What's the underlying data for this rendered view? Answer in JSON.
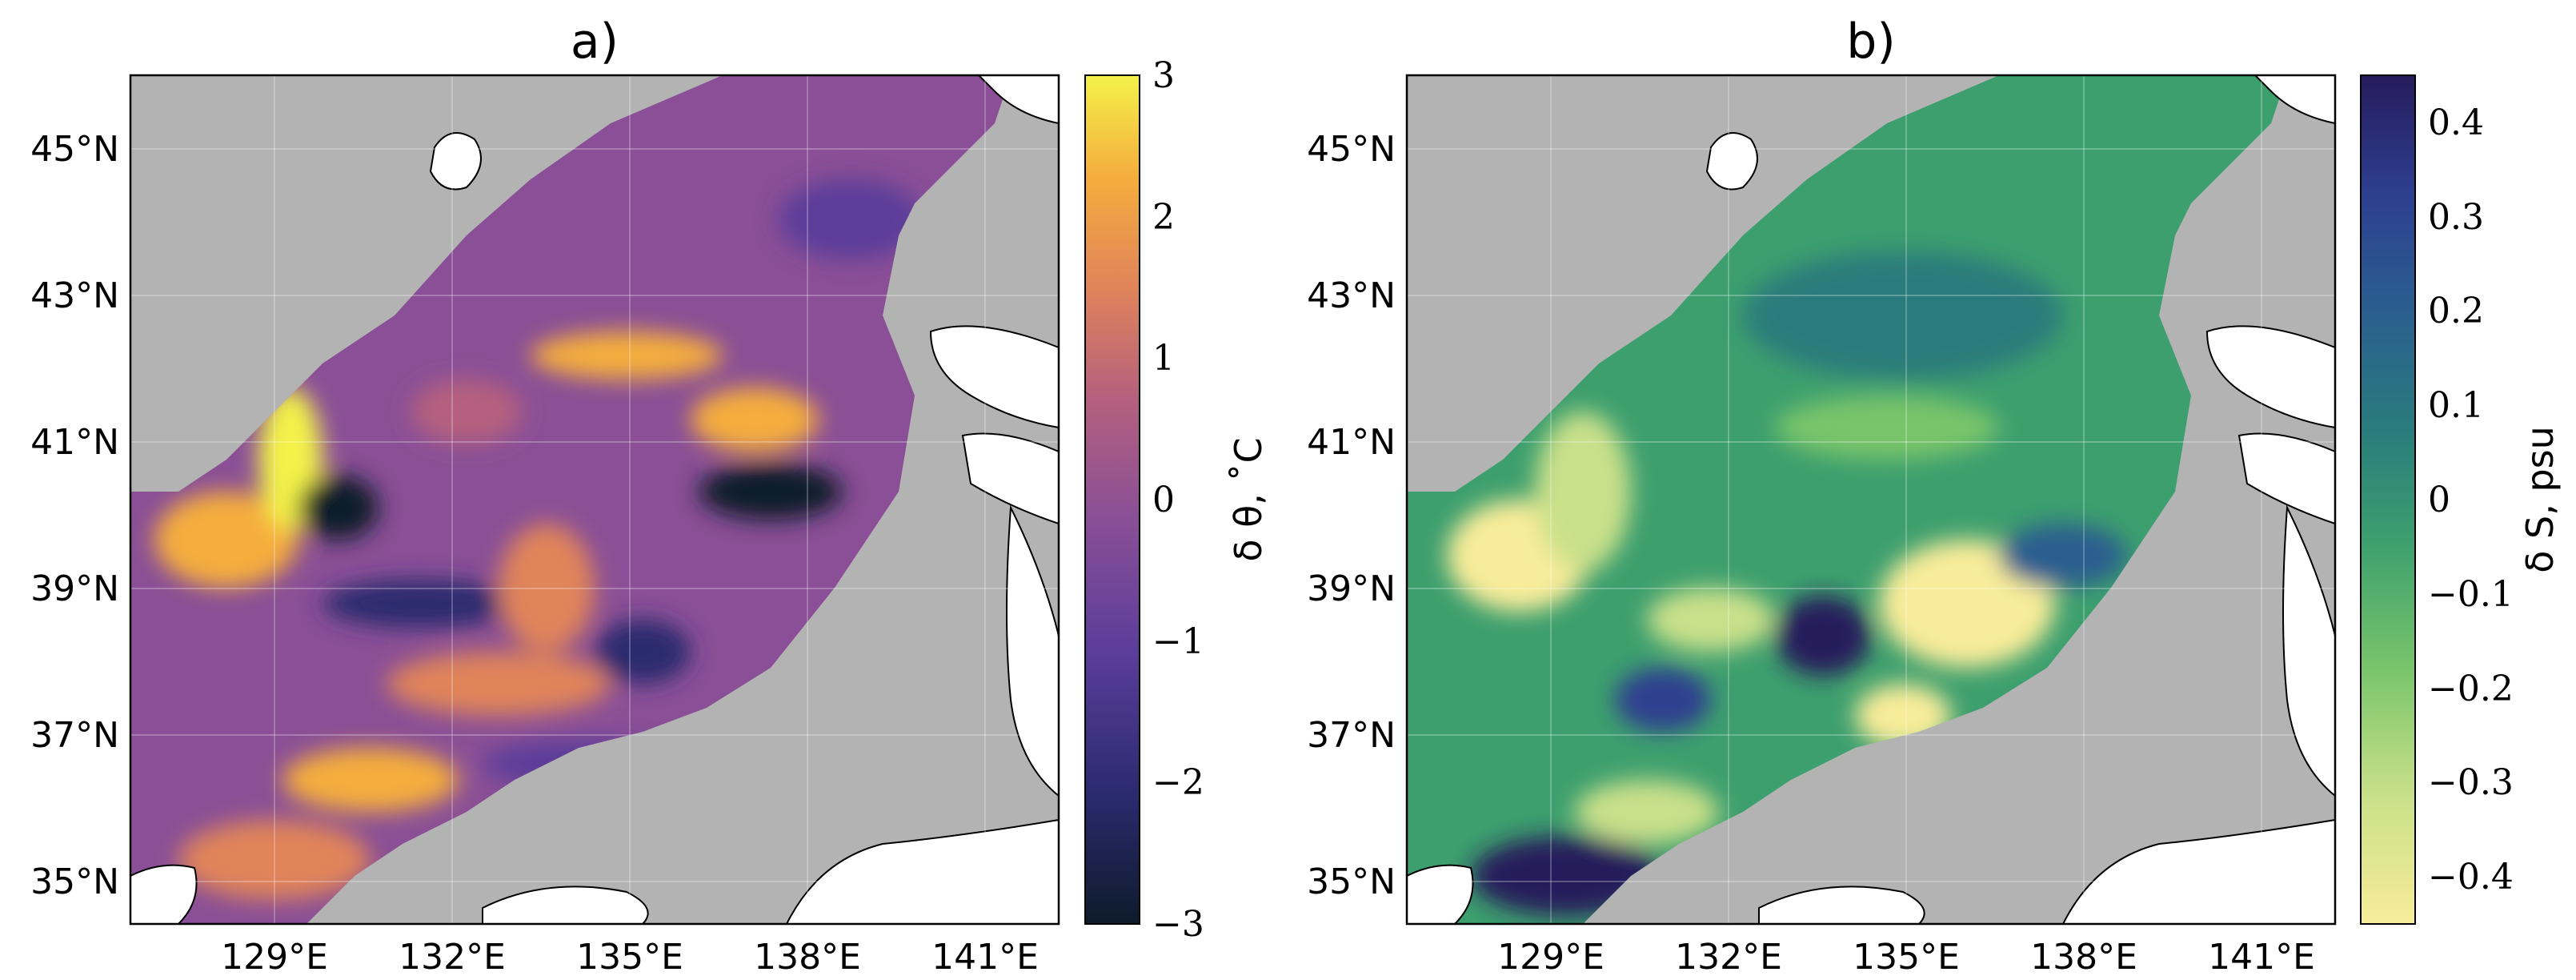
{
  "panels": [
    {
      "id": "a",
      "title": "a)",
      "colormap": [
        "#0d1b2a",
        "#2a2a6e",
        "#5b3d9a",
        "#8a4f96",
        "#b5607e",
        "#e0845a",
        "#f5ad3d",
        "#f3f24a"
      ],
      "colorbar": {
        "label": "δ θ, ˚C",
        "ticks": [
          "3",
          "2",
          "1",
          "0",
          "−1",
          "−2",
          "−3"
        ],
        "range": [
          -3,
          3
        ]
      }
    },
    {
      "id": "b",
      "title": "b)",
      "colormap": [
        "#f8ec9a",
        "#c9e08a",
        "#79c56b",
        "#3d9f6e",
        "#2a7c7c",
        "#2a5f8f",
        "#2d3f8f",
        "#261b5c"
      ],
      "colorbar": {
        "label": "δ S, psu",
        "ticks": [
          "0.4",
          "0.3",
          "0.2",
          "0.1",
          "0",
          "−0.1",
          "−0.2",
          "−0.3",
          "−0.4"
        ],
        "range": [
          -0.45,
          0.45
        ]
      }
    }
  ],
  "axes": {
    "lat_ticks": [
      "45°N",
      "43°N",
      "41°N",
      "39°N",
      "37°N",
      "35°N"
    ],
    "lon_ticks": [
      "129°E",
      "132°E",
      "135°E",
      "138°E",
      "141°E"
    ]
  },
  "map_colors": {
    "land": "#b3b3b3",
    "outside": "#ffffff"
  }
}
